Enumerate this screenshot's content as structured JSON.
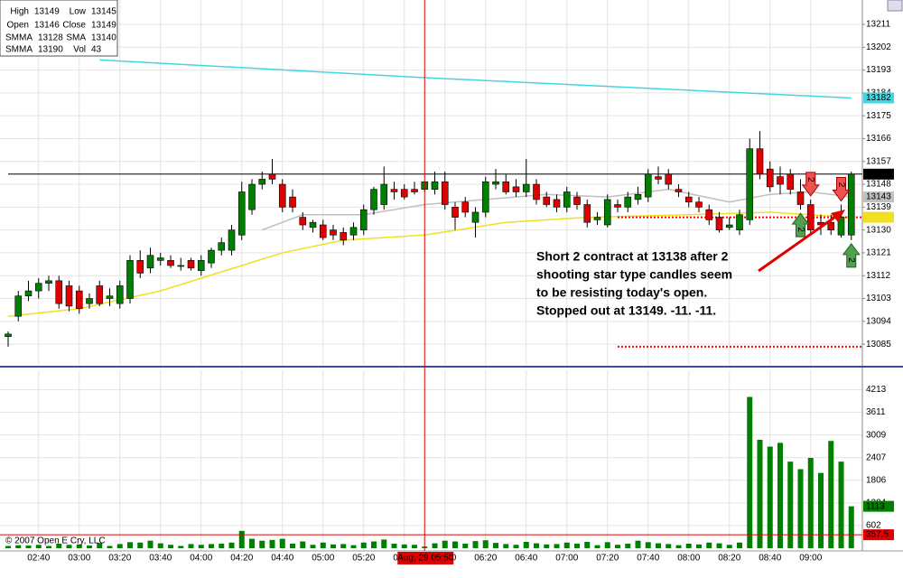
{
  "chart_data": {
    "type": "candlestick",
    "categories": [
      "02:25",
      "02:30",
      "02:35",
      "02:40",
      "02:45",
      "02:50",
      "02:55",
      "03:00",
      "03:05",
      "03:10",
      "03:15",
      "03:20",
      "03:25",
      "03:30",
      "03:35",
      "03:40",
      "03:45",
      "03:50",
      "03:55",
      "04:00",
      "04:05",
      "04:10",
      "04:15",
      "04:20",
      "04:25",
      "04:30",
      "04:35",
      "04:40",
      "04:45",
      "04:50",
      "04:55",
      "05:00",
      "05:05",
      "05:10",
      "05:15",
      "05:20",
      "05:25",
      "05:30",
      "05:35",
      "05:40",
      "05:45",
      "05:50",
      "05:55",
      "06:00",
      "06:05",
      "06:10",
      "06:15",
      "06:20",
      "06:25",
      "06:30",
      "06:35",
      "06:40",
      "06:45",
      "06:50",
      "06:55",
      "07:00",
      "07:05",
      "07:10",
      "07:15",
      "07:20",
      "07:25",
      "07:30",
      "07:35",
      "07:40",
      "07:45",
      "07:50",
      "07:55",
      "08:00",
      "08:05",
      "08:10",
      "08:15",
      "08:20",
      "08:25",
      "08:30",
      "08:35",
      "08:40",
      "08:45",
      "08:50",
      "08:55",
      "09:00",
      "09:05",
      "09:10",
      "09:15",
      "09:20"
    ],
    "open": [
      13088,
      13096,
      13104,
      13106,
      13109,
      13110,
      13108,
      13106,
      13101,
      13108,
      13103,
      13101,
      13103,
      13118,
      13115,
      13118,
      13118,
      13116,
      13118,
      13114,
      13117,
      13122,
      13122,
      13128,
      13138,
      13148,
      13152,
      13148,
      13143,
      13135,
      13131,
      13132,
      13130,
      13129,
      13128,
      13130,
      13138,
      13140,
      13146,
      13146,
      13146,
      13146,
      13146,
      13149,
      13139,
      13141,
      13133,
      13137,
      13148,
      13149,
      13147,
      13145,
      13148,
      13143,
      13142,
      13139,
      13143,
      13140,
      13134,
      13132,
      13140,
      13139,
      13142,
      13143,
      13151,
      13152,
      13146,
      13143,
      13141,
      13138,
      13135,
      13131,
      13130,
      13134,
      13162,
      13154,
      13151,
      13152,
      13145,
      13140,
      13133,
      13133,
      13128,
      13128
    ],
    "high": [
      13090,
      13106,
      13110,
      13111,
      13112,
      13112,
      13110,
      13108,
      13105,
      13110,
      13107,
      13110,
      13120,
      13122,
      13123,
      13121,
      13120,
      13119,
      13119,
      13120,
      13123,
      13127,
      13132,
      13149,
      13150,
      13153,
      13158,
      13150,
      13146,
      13137,
      13134,
      13134,
      13132,
      13131,
      13133,
      13140,
      13147,
      13155,
      13149,
      13148,
      13149,
      13149,
      13153,
      13153,
      13141,
      13143,
      13139,
      13151,
      13154,
      13152,
      13150,
      13158,
      13150,
      13145,
      13144,
      13147,
      13145,
      13142,
      13137,
      13144,
      13142,
      13145,
      13147,
      13154,
      13155,
      13154,
      13148,
      13145,
      13143,
      13140,
      13137,
      13135,
      13138,
      13166,
      13169,
      13157,
      13155,
      13154,
      13150,
      13142,
      13136,
      13136,
      13140,
      13153
    ],
    "low": [
      13084,
      13094,
      13102,
      13103,
      13106,
      13099,
      13098,
      13097,
      13099,
      13100,
      13100,
      13099,
      13101,
      13111,
      13113,
      13116,
      13115,
      13114,
      13114,
      13112,
      13115,
      13120,
      13120,
      13126,
      13136,
      13146,
      13148,
      13137,
      13137,
      13130,
      13129,
      13126,
      13126,
      13124,
      13126,
      13128,
      13136,
      13138,
      13142,
      13142,
      13144,
      13145,
      13144,
      13138,
      13130,
      13135,
      13127,
      13135,
      13146,
      13144,
      13143,
      13143,
      13140,
      13139,
      13137,
      13137,
      13138,
      13131,
      13132,
      13131,
      13137,
      13137,
      13140,
      13141,
      13148,
      13146,
      13143,
      13139,
      13137,
      13132,
      13129,
      13130,
      13128,
      13132,
      13150,
      13145,
      13144,
      13144,
      13138,
      13128,
      13128,
      13128,
      13127,
      13126
    ],
    "close": [
      13089,
      13104,
      13106,
      13109,
      13110,
      13101,
      13100,
      13099,
      13103,
      13101,
      13104,
      13108,
      13118,
      13113,
      13120,
      13119,
      13116,
      13116,
      13115,
      13118,
      13122,
      13125,
      13130,
      13145,
      13148,
      13150,
      13150,
      13139,
      13139,
      13132,
      13133,
      13127,
      13128,
      13126,
      13131,
      13138,
      13146,
      13148,
      13145,
      13143,
      13145,
      13149,
      13149,
      13140,
      13135,
      13137,
      13137,
      13149,
      13149,
      13145,
      13145,
      13148,
      13142,
      13140,
      13139,
      13145,
      13140,
      13133,
      13135,
      13142,
      13139,
      13143,
      13144,
      13152,
      13150,
      13148,
      13145,
      13141,
      13139,
      13134,
      13130,
      13132,
      13136,
      13162,
      13152,
      13147,
      13148,
      13146,
      13140,
      13130,
      13132,
      13130,
      13135,
      13152
    ],
    "volume": [
      60,
      80,
      70,
      90,
      60,
      120,
      90,
      100,
      70,
      140,
      60,
      110,
      160,
      150,
      200,
      130,
      90,
      60,
      110,
      90,
      110,
      120,
      150,
      460,
      250,
      200,
      220,
      250,
      120,
      180,
      90,
      150,
      100,
      110,
      80,
      150,
      180,
      230,
      120,
      100,
      90,
      43,
      130,
      200,
      180,
      120,
      190,
      210,
      140,
      110,
      90,
      170,
      130,
      100,
      110,
      150,
      120,
      170,
      80,
      160,
      90,
      120,
      200,
      160,
      130,
      110,
      80,
      120,
      100,
      150,
      130,
      90,
      150,
      4020,
      2880,
      2700,
      2800,
      2300,
      2100,
      2400,
      2000,
      2850,
      2300,
      1113
    ],
    "up_color": "#008000",
    "down_color": "#e00000",
    "volume_color": "#008000",
    "ylim": [
      13076.5,
      13220.6
    ],
    "yticks": [
      13085,
      13094,
      13103,
      13112,
      13121,
      13130,
      13139,
      13148,
      13157,
      13166,
      13175,
      13184,
      13193,
      13202,
      13211
    ],
    "vlim": [
      0,
      4728
    ],
    "vticks": [
      602,
      1204,
      1806,
      2407,
      3009,
      3611,
      4213
    ],
    "xticks": [
      "02:40",
      "03:00",
      "03:20",
      "03:40",
      "04:00",
      "04:20",
      "04:40",
      "05:00",
      "05:20",
      "05:40",
      "06:00",
      "06:20",
      "06:40",
      "07:00",
      "07:20",
      "07:40",
      "08:00",
      "08:20",
      "08:40",
      "09:00"
    ],
    "grid": true,
    "indicators": [
      {
        "name": "SMMA",
        "color": "#f0e020",
        "x": [
          "02:25",
          "03:00",
          "03:40",
          "04:20",
          "04:40",
          "05:10",
          "05:50",
          "06:30",
          "07:10",
          "08:00",
          "08:40",
          "09:20"
        ],
        "values": [
          13096,
          13099,
          13106,
          13116,
          13121,
          13126,
          13128,
          13133,
          13135,
          13136,
          13137,
          13135
        ]
      },
      {
        "name": "SMA",
        "color": "#c0c0c0",
        "x": [
          "04:30",
          "04:50",
          "05:20",
          "05:50",
          "06:20",
          "06:50",
          "07:20",
          "07:50",
          "08:20",
          "08:40",
          "09:00",
          "09:20"
        ],
        "values": [
          13130,
          13136,
          13136,
          13140,
          13142,
          13144,
          13143,
          13146,
          13141,
          13144,
          13145,
          13143
        ]
      },
      {
        "name": "SMMA",
        "color": "#40d8e0",
        "x": [
          "03:10",
          "05:50",
          "09:20"
        ],
        "values": [
          13197,
          13190,
          13182
        ]
      }
    ],
    "levels": [
      {
        "value": 13152,
        "color": "#000000",
        "style": "solid",
        "from": "02:25"
      },
      {
        "value": 13135,
        "color": "#ff0000",
        "style": "dotted",
        "from": "07:25"
      },
      {
        "value": 13084,
        "color": "#ff0000",
        "style": "dotted",
        "from": "07:25"
      }
    ],
    "markers": [
      {
        "x": "08:55",
        "kind": "buy",
        "label": "2"
      },
      {
        "x": "09:00",
        "kind": "sell",
        "label": "2"
      },
      {
        "x": "09:15",
        "kind": "sell",
        "label": "2"
      },
      {
        "x": "09:20",
        "kind": "buy",
        "label": "2"
      }
    ],
    "info_labels": {
      "high": "High",
      "low": "Low",
      "open": "Open",
      "close": "Close",
      "vol": "Vol"
    },
    "crosshair": {
      "x": "05:50",
      "label": "Aug, 29 05:50",
      "volume": 357.5
    },
    "annotation": [
      "Short 2 contract at 13138 after 2",
      "shooting star type candles seem",
      "to be resisting today's open.",
      "Stopped out at 13149.  -11.  -11."
    ],
    "copyright": "© 2007 Open E Cry, LLC"
  }
}
